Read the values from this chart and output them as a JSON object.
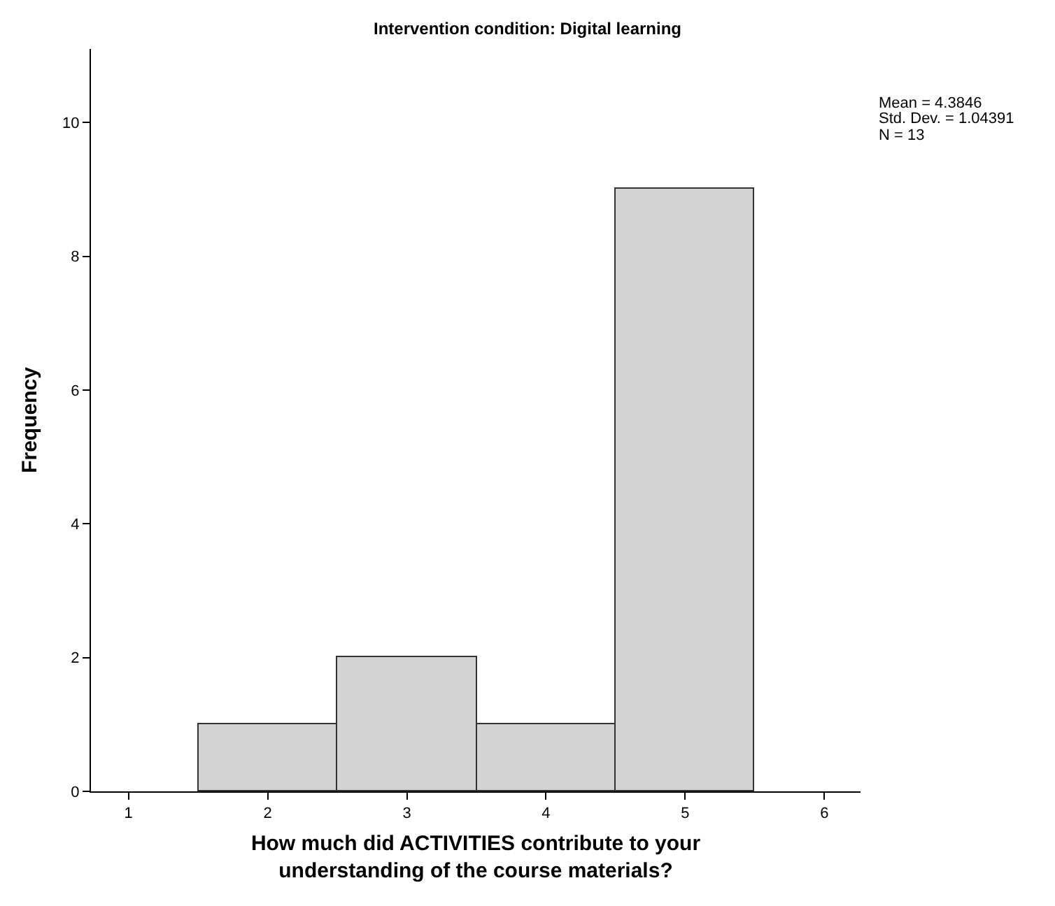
{
  "chart_data": {
    "type": "histogram",
    "title": "Intervention condition: Digital learning",
    "xlabel": "How much did ACTIVITIES contribute to your\nunderstanding of the course materials?",
    "ylabel": "Frequency",
    "bins": [
      1.5,
      2.5,
      3.5,
      4.5,
      5.5
    ],
    "values": [
      1,
      2,
      1,
      9
    ],
    "color": "#d3d3d3",
    "xlim": [
      0.73,
      6.26
    ],
    "xticks": [
      1,
      2,
      3,
      4,
      5,
      6
    ],
    "ylim": [
      0,
      11.1
    ],
    "yticks": [
      0,
      2,
      4,
      6,
      8,
      10
    ],
    "annotations": [
      "Mean = 4.3846",
      "Std. Dev. = 1.04391",
      "N = 13"
    ]
  }
}
